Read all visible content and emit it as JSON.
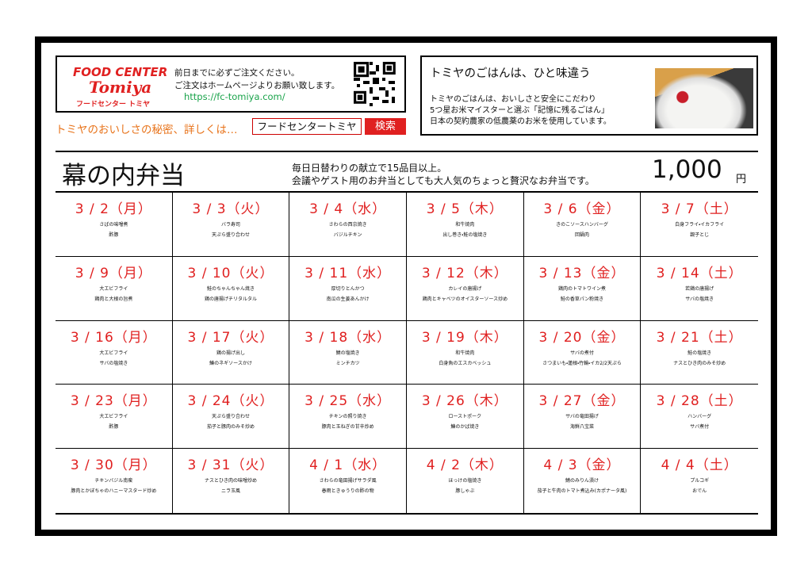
{
  "info": {
    "logo": [
      "FOOD CENTER",
      "Tomiya",
      "フードセンター トミヤ"
    ],
    "notice": [
      "前日までに必ずご注文ください。",
      "ご注文はホームページよりお願い致します。"
    ],
    "url": "https://fc-tomiya.com/"
  },
  "search": {
    "label": "トミヤのおいしさの秘密、詳しくは…",
    "query": "フードセンタートミヤ",
    "button": "検索"
  },
  "promo": {
    "title": "トミヤのごはんは、ひと味違う",
    "lines": [
      "トミヤのごはんは、おいしさと安全にこだわり",
      "5つ星お米マイスターと選ぶ「記憶に残るごはん」",
      "日本の契約農家の低農薬のお米を使用しています。"
    ]
  },
  "menu": {
    "title": "幕の内弁当",
    "description": [
      "毎日日替わりの献立で15品目以上。",
      "会議やゲスト用のお弁当としても大人気のちょっと贅沢なお弁当です。"
    ],
    "price": "1,000",
    "currency": "円"
  },
  "days": [
    [
      {
        "date": "3 / 2（月）",
        "items": [
          "さばの味噌煮",
          "酢豚"
        ]
      },
      {
        "date": "3 / 3（火）",
        "items": [
          "バラ寿司",
          "天ぷら盛り合わせ"
        ]
      },
      {
        "date": "3 / 4（水）",
        "items": [
          "さわらの西京焼き",
          "バジルチキン"
        ]
      },
      {
        "date": "3 / 5（木）",
        "items": [
          "和牛焼肉",
          "出し巻き・鮭の塩焼き"
        ]
      },
      {
        "date": "3 / 6（金）",
        "items": [
          "きのこソースハンバーグ",
          "回鍋肉"
        ]
      },
      {
        "date": "3 / 7（土）",
        "items": [
          "白身フライ・イカフライ",
          "親子とじ"
        ]
      }
    ],
    [
      {
        "date": "3 / 9（月）",
        "items": [
          "大エビフライ",
          "鶏肉と大根の旨煮"
        ]
      },
      {
        "date": "3 / 10（火）",
        "items": [
          "鮭のちゃんちゃん焼き",
          "鶏の唐揚げチリタルタル"
        ]
      },
      {
        "date": "3 / 11（水）",
        "items": [
          "厚切りとんかつ",
          "南瓜の生姜あんかけ"
        ]
      },
      {
        "date": "3 / 12（木）",
        "items": [
          "カレイの唐揚げ",
          "鶏肉とキャベツのオイスターソース炒め"
        ]
      },
      {
        "date": "3 / 13（金）",
        "items": [
          "鶏肉のトマトワイン煮",
          "鮭の香草パン粉焼き"
        ]
      },
      {
        "date": "3 / 14（土）",
        "items": [
          "若鶏の唐揚げ",
          "サバの塩焼き"
        ]
      }
    ],
    [
      {
        "date": "3 / 16（月）",
        "items": [
          "大エビフライ",
          "サバの塩焼き"
        ]
      },
      {
        "date": "3 / 17（火）",
        "items": [
          "鶏の揚げ出し",
          "鰆のネギソースかけ"
        ]
      },
      {
        "date": "3 / 18（水）",
        "items": [
          "鯖の塩焼き",
          "ミンチカツ"
        ]
      },
      {
        "date": "3 / 19（木）",
        "items": [
          "和牛焼肉",
          "白身魚のエスカベッシュ"
        ]
      },
      {
        "date": "3 / 20（金）",
        "items": [
          "サバの煮付",
          "さつまいも・蓮根・竹輪・イカ2/2天ぷら"
        ]
      },
      {
        "date": "3 / 21（土）",
        "items": [
          "鮭の塩焼き",
          "ナスとひき肉のみそ炒め"
        ]
      }
    ],
    [
      {
        "date": "3 / 23（月）",
        "items": [
          "大エビフライ",
          "酢豚"
        ]
      },
      {
        "date": "3 / 24（火）",
        "items": [
          "天ぷら盛り合わせ",
          "茄子と豚肉のみそ炒め"
        ]
      },
      {
        "date": "3 / 25（水）",
        "items": [
          "チキンの照り焼き",
          "豚肉と玉ねぎの甘辛炒め"
        ]
      },
      {
        "date": "3 / 26（木）",
        "items": [
          "ローストポーク",
          "鰆のかば焼き"
        ]
      },
      {
        "date": "3 / 27（金）",
        "items": [
          "サバの竜田揚げ",
          "海鮮八宝菜"
        ]
      },
      {
        "date": "3 / 28（土）",
        "items": [
          "ハンバーグ",
          "サバ煮付"
        ]
      }
    ],
    [
      {
        "date": "3 / 30（月）",
        "items": [
          "チキンバジル南蛮",
          "豚肉とかぼちゃのハニーマスタード炒め"
        ]
      },
      {
        "date": "3 / 31（火）",
        "items": [
          "ナスとひき肉の味噌炒め",
          "ニラ玉風"
        ]
      },
      {
        "date": "4 / 1（水）",
        "items": [
          "さわらの竜田揚げサラダ風",
          "春雨ときゅうりの酢の物"
        ]
      },
      {
        "date": "4 / 2（木）",
        "items": [
          "ほっけの塩焼き",
          "豚しゃぶ"
        ]
      },
      {
        "date": "4 / 3（金）",
        "items": [
          "鯖のみりん漬け",
          "茄子と牛肉のトマト煮込み(カポナータ風)"
        ]
      },
      {
        "date": "4 / 4（土）",
        "items": [
          "プルコギ",
          "おでん"
        ]
      }
    ]
  ]
}
